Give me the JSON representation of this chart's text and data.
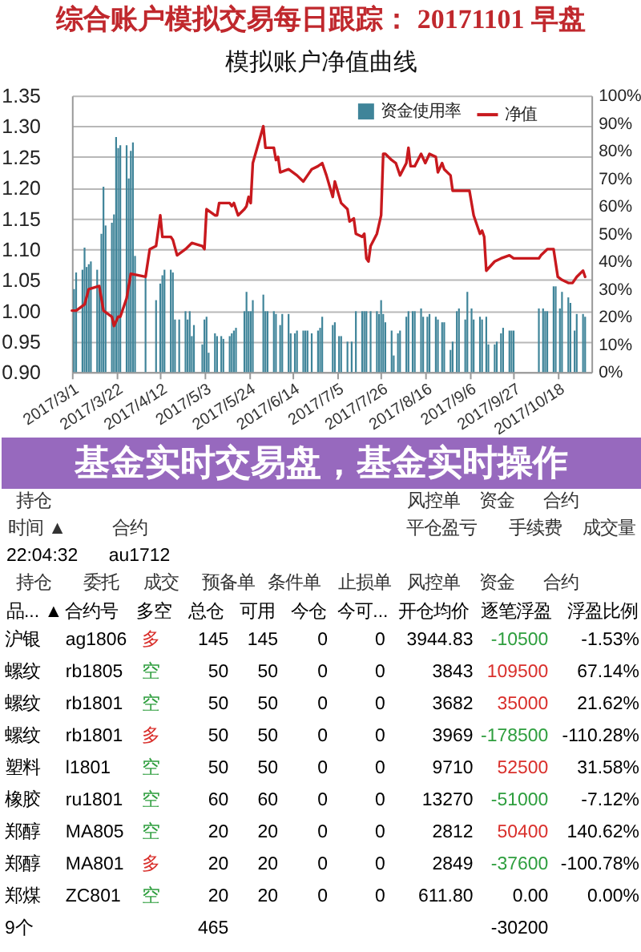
{
  "chart_data": [
    {
      "type": "bar",
      "title": "综合账户模拟交易每日跟踪： 20171101 早盘",
      "subtitle": "模拟账户净值曲线",
      "xlim": [
        "2017-03-01",
        "2017-11-03"
      ],
      "xticks": [
        {
          "value": "2017-03-01",
          "label": "2017/3/1"
        },
        {
          "value": "2017-03-22",
          "label": "2017/3/22"
        },
        {
          "value": "2017-04-12",
          "label": "2017/4/12"
        },
        {
          "value": "2017-05-03",
          "label": "2017/5/3"
        },
        {
          "value": "2017-05-24",
          "label": "2017/5/24"
        },
        {
          "value": "2017-06-14",
          "label": "2017/6/14"
        },
        {
          "value": "2017-07-05",
          "label": "2017/7/5"
        },
        {
          "value": "2017-07-26",
          "label": "2017/7/26"
        },
        {
          "value": "2017-08-16",
          "label": "2017/8/16"
        },
        {
          "value": "2017-09-06",
          "label": "2017/9/6"
        },
        {
          "value": "2017-09-27",
          "label": "2017/9/27"
        },
        {
          "value": "2017-10-18",
          "label": "2017/10/18"
        }
      ],
      "ylim": [
        0.9,
        1.35
      ],
      "yticks": [
        {
          "value": 0.9,
          "label": "0.90"
        },
        {
          "value": 0.95,
          "label": "0.95"
        },
        {
          "value": 1.0,
          "label": "1.00"
        },
        {
          "value": 1.05,
          "label": "1.05"
        },
        {
          "value": 1.1,
          "label": "1.10"
        },
        {
          "value": 1.15,
          "label": "1.15"
        },
        {
          "value": 1.2,
          "label": "1.20"
        },
        {
          "value": 1.25,
          "label": "1.25"
        },
        {
          "value": 1.3,
          "label": "1.30"
        },
        {
          "value": 1.35,
          "label": "1.35"
        }
      ],
      "y2lim": [
        0,
        100
      ],
      "y2ticks": [
        {
          "value": 0,
          "label": "0%"
        },
        {
          "value": 10,
          "label": "10%"
        },
        {
          "value": 20,
          "label": "20%"
        },
        {
          "value": 30,
          "label": "30%"
        },
        {
          "value": 40,
          "label": "40%"
        },
        {
          "value": 50,
          "label": "50%"
        },
        {
          "value": 60,
          "label": "60%"
        },
        {
          "value": 70,
          "label": "70%"
        },
        {
          "value": 80,
          "label": "80%"
        },
        {
          "value": 90,
          "label": "90%"
        },
        {
          "value": 100,
          "label": "100%"
        }
      ],
      "grid": "y",
      "legend": "top right",
      "series": [
        {
          "name": "资金使用率",
          "type": "bar",
          "axis": "y2",
          "color": "#3f8499",
          "x": [
            "2017-03-02",
            "2017-03-03",
            "2017-03-06",
            "2017-03-07",
            "2017-03-08",
            "2017-03-09",
            "2017-03-10",
            "2017-03-13",
            "2017-03-14",
            "2017-03-15",
            "2017-03-16",
            "2017-03-17",
            "2017-03-20",
            "2017-03-21",
            "2017-03-22",
            "2017-03-23",
            "2017-03-24",
            "2017-03-27",
            "2017-03-28",
            "2017-03-29",
            "2017-03-30",
            "2017-03-31",
            "2017-04-05",
            "2017-04-10",
            "2017-04-12",
            "2017-04-13",
            "2017-04-14",
            "2017-04-17",
            "2017-04-18",
            "2017-04-19",
            "2017-04-21",
            "2017-04-24",
            "2017-04-25",
            "2017-04-26",
            "2017-04-27",
            "2017-04-28",
            "2017-05-02",
            "2017-05-03",
            "2017-05-04",
            "2017-05-05",
            "2017-05-08",
            "2017-05-09",
            "2017-05-11",
            "2017-05-12",
            "2017-05-15",
            "2017-05-16",
            "2017-05-17",
            "2017-05-18",
            "2017-05-22",
            "2017-05-23",
            "2017-05-24",
            "2017-05-25",
            "2017-05-26",
            "2017-05-31",
            "2017-06-01",
            "2017-06-02",
            "2017-06-05",
            "2017-06-06",
            "2017-06-08",
            "2017-06-09",
            "2017-06-12",
            "2017-06-13",
            "2017-06-15",
            "2017-06-16",
            "2017-06-19",
            "2017-06-20",
            "2017-06-21",
            "2017-06-23",
            "2017-06-26",
            "2017-06-27",
            "2017-06-28",
            "2017-07-03",
            "2017-07-04",
            "2017-07-06",
            "2017-07-07",
            "2017-07-10",
            "2017-07-12",
            "2017-07-14",
            "2017-07-17",
            "2017-07-18",
            "2017-07-19",
            "2017-07-21",
            "2017-07-24",
            "2017-07-25",
            "2017-07-26",
            "2017-07-27",
            "2017-07-28",
            "2017-07-31",
            "2017-08-01",
            "2017-08-03",
            "2017-08-04",
            "2017-08-07",
            "2017-08-08",
            "2017-08-10",
            "2017-08-11",
            "2017-08-14",
            "2017-08-15",
            "2017-08-17",
            "2017-08-18",
            "2017-08-21",
            "2017-08-22",
            "2017-08-24",
            "2017-08-25",
            "2017-08-28",
            "2017-08-29",
            "2017-08-31",
            "2017-09-01",
            "2017-09-04",
            "2017-09-05",
            "2017-09-07",
            "2017-09-08",
            "2017-09-11",
            "2017-09-12",
            "2017-09-14",
            "2017-09-15",
            "2017-09-18",
            "2017-09-19",
            "2017-09-21",
            "2017-09-22",
            "2017-09-25",
            "2017-09-26",
            "2017-09-27",
            "2017-10-09",
            "2017-10-11",
            "2017-10-12",
            "2017-10-13",
            "2017-10-16",
            "2017-10-17",
            "2017-10-19",
            "2017-10-20",
            "2017-10-23",
            "2017-10-24",
            "2017-10-26",
            "2017-10-27",
            "2017-10-30",
            "2017-10-31"
          ],
          "values": [
            30,
            36,
            37,
            45,
            38,
            39,
            40,
            37,
            31,
            50,
            67,
            53,
            54,
            57,
            85,
            81,
            82,
            82,
            70,
            80,
            83,
            42,
            34,
            26,
            32,
            35,
            37,
            37,
            36,
            19,
            19,
            22,
            19,
            22,
            13,
            17,
            10,
            19,
            20,
            7,
            14,
            13,
            13,
            12,
            13,
            14,
            15,
            16,
            22,
            29,
            22,
            22,
            26,
            28,
            22,
            22,
            22,
            21,
            17,
            21,
            21,
            14,
            14,
            15,
            15,
            15,
            15,
            14,
            15,
            16,
            20,
            17,
            18,
            13,
            13,
            11,
            11,
            22,
            22,
            22,
            22,
            22,
            22,
            21,
            26,
            21,
            18,
            15,
            6,
            14,
            15,
            20,
            22,
            22,
            22,
            23,
            20,
            20,
            21,
            20,
            19,
            18,
            18,
            8,
            11,
            22,
            23,
            19,
            29,
            23,
            19,
            20,
            19,
            20,
            10,
            10,
            11,
            14,
            16,
            15,
            15,
            15,
            23,
            23,
            22,
            22,
            31,
            31,
            23,
            29,
            27,
            25,
            15,
            21,
            21,
            20
          ]
        },
        {
          "name": "净值",
          "type": "line",
          "color": "#c8191e",
          "x": [
            "2017-03-01",
            "2017-03-03",
            "2017-03-07",
            "2017-03-09",
            "2017-03-14",
            "2017-03-16",
            "2017-03-20",
            "2017-03-21",
            "2017-03-23",
            "2017-03-24",
            "2017-03-27",
            "2017-03-29",
            "2017-04-05",
            "2017-04-07",
            "2017-04-10",
            "2017-04-12",
            "2017-04-13",
            "2017-04-17",
            "2017-04-18",
            "2017-04-20",
            "2017-04-24",
            "2017-04-27",
            "2017-05-02",
            "2017-05-03",
            "2017-05-04",
            "2017-05-08",
            "2017-05-09",
            "2017-05-10",
            "2017-05-15",
            "2017-05-16",
            "2017-05-17",
            "2017-05-19",
            "2017-05-22",
            "2017-05-23",
            "2017-05-24",
            "2017-05-25",
            "2017-05-26",
            "2017-05-31",
            "2017-06-01",
            "2017-06-05",
            "2017-06-06",
            "2017-06-07",
            "2017-06-08",
            "2017-06-12",
            "2017-06-16",
            "2017-06-19",
            "2017-06-21",
            "2017-06-23",
            "2017-06-26",
            "2017-06-28",
            "2017-06-30",
            "2017-07-03",
            "2017-07-04",
            "2017-07-07",
            "2017-07-10",
            "2017-07-11",
            "2017-07-13",
            "2017-07-14",
            "2017-07-17",
            "2017-07-18",
            "2017-07-19",
            "2017-07-20",
            "2017-07-21",
            "2017-07-24",
            "2017-07-26",
            "2017-07-27",
            "2017-07-28",
            "2017-07-31",
            "2017-08-02",
            "2017-08-04",
            "2017-08-07",
            "2017-08-08",
            "2017-08-09",
            "2017-08-11",
            "2017-08-14",
            "2017-08-16",
            "2017-08-18",
            "2017-08-21",
            "2017-08-22",
            "2017-08-24",
            "2017-08-25",
            "2017-08-28",
            "2017-08-29",
            "2017-08-31",
            "2017-09-04",
            "2017-09-06",
            "2017-09-08",
            "2017-09-11",
            "2017-09-12",
            "2017-09-13",
            "2017-09-14",
            "2017-09-18",
            "2017-09-21",
            "2017-09-25",
            "2017-09-27",
            "2017-10-09",
            "2017-10-10",
            "2017-10-13",
            "2017-10-16",
            "2017-10-18",
            "2017-10-20",
            "2017-10-23",
            "2017-10-25",
            "2017-10-27",
            "2017-10-30",
            "2017-10-31"
          ],
          "values": [
            1.0,
            1.0,
            1.01,
            1.035,
            1.04,
            1.0,
            0.99,
            0.975,
            0.99,
            0.99,
            1.02,
            1.06,
            1.055,
            1.1,
            1.105,
            1.155,
            1.12,
            1.12,
            1.115,
            1.09,
            1.1,
            1.11,
            1.105,
            1.1,
            1.165,
            1.155,
            1.155,
            1.175,
            1.175,
            1.17,
            1.175,
            1.155,
            1.165,
            1.17,
            1.185,
            1.175,
            1.24,
            1.3,
            1.265,
            1.265,
            1.245,
            1.25,
            1.225,
            1.23,
            1.22,
            1.21,
            1.22,
            1.23,
            1.235,
            1.24,
            1.22,
            1.185,
            1.21,
            1.175,
            1.165,
            1.145,
            1.15,
            1.125,
            1.12,
            1.125,
            1.085,
            1.08,
            1.105,
            1.125,
            1.155,
            1.255,
            1.255,
            1.245,
            1.24,
            1.22,
            1.24,
            1.265,
            1.235,
            1.235,
            1.255,
            1.24,
            1.255,
            1.25,
            1.225,
            1.24,
            1.23,
            1.22,
            1.195,
            1.195,
            1.195,
            1.195,
            1.155,
            1.125,
            1.13,
            1.12,
            1.065,
            1.08,
            1.085,
            1.09,
            1.085,
            1.085,
            1.09,
            1.1,
            1.1,
            1.055,
            1.05,
            1.045,
            1.045,
            1.055,
            1.065,
            1.055
          ]
        }
      ]
    },
    {
      "type": "other",
      "title": "基金实时交易盘，基金实时操作",
      "annotations": [
        "持仓",
        "风控单",
        "资金",
        "合约",
        "时间 ▲",
        "合约",
        "平仓盈亏",
        "手续费",
        "成交量",
        "22:04:32",
        "au1712",
        "持仓",
        "委托",
        "成交",
        "预备单",
        "条件单",
        "止损单",
        "风控单",
        "资金",
        "合约",
        "品... ▲",
        "合约号",
        "多空",
        "总仓",
        "可用",
        "今仓",
        "今可...",
        "开仓均价",
        "逐笔浮盈",
        "浮盈比例",
        "沪银",
        "ag1806",
        "多",
        "145",
        "145",
        "0",
        "0",
        "3944.83",
        "-10500",
        "-1.53%",
        "螺纹",
        "rb1805",
        "空",
        "50",
        "50",
        "0",
        "0",
        "3843",
        "109500",
        "67.14%",
        "螺纹",
        "rb1801",
        "空",
        "50",
        "50",
        "0",
        "0",
        "3682",
        "35000",
        "21.62%",
        "螺纹",
        "rb1801",
        "多",
        "50",
        "50",
        "0",
        "0",
        "3969",
        "-178500",
        "-110.28%",
        "塑料",
        "l1801",
        "空",
        "50",
        "50",
        "0",
        "0",
        "9710",
        "52500",
        "31.58%",
        "橡胶",
        "ru1801",
        "空",
        "60",
        "60",
        "0",
        "0",
        "13270",
        "-51000",
        "-7.12%",
        "郑醇",
        "MA805",
        "空",
        "20",
        "20",
        "0",
        "0",
        "2812",
        "50400",
        "140.62%",
        "郑醇",
        "MA801",
        "多",
        "20",
        "20",
        "0",
        "0",
        "2849",
        "-37600",
        "-100.78%",
        "郑煤",
        "ZC801",
        "空",
        "20",
        "20",
        "0",
        "0",
        "611.80",
        "0.00",
        "0.00%",
        "9个",
        "465",
        "-30200"
      ],
      "colors": [
        "#333333",
        "#333333",
        "#333333",
        "#333333",
        "#333333",
        "#333333",
        "#333333",
        "#333333",
        "#333333",
        "#000000",
        "#000000",
        "#333333",
        "#333333",
        "#333333",
        "#333333",
        "#333333",
        "#333333",
        "#333333",
        "#333333",
        "#333333",
        "#000000",
        "#000000",
        "#000000",
        "#000000",
        "#000000",
        "#000000",
        "#000000",
        "#000000",
        "#000000",
        "#000000",
        "#000000",
        "#000000",
        "#d9302c",
        "#000000",
        "#000000",
        "#000000",
        "#000000",
        "#000000",
        "#2e9e3e",
        "#000000",
        "#000000",
        "#000000",
        "#2e9e3e",
        "#000000",
        "#000000",
        "#000000",
        "#000000",
        "#000000",
        "#d9302c",
        "#000000",
        "#000000",
        "#000000",
        "#2e9e3e",
        "#000000",
        "#000000",
        "#000000",
        "#000000",
        "#000000",
        "#d9302c",
        "#000000",
        "#000000",
        "#000000",
        "#d9302c",
        "#000000",
        "#000000",
        "#000000",
        "#000000",
        "#000000",
        "#2e9e3e",
        "#000000",
        "#000000",
        "#000000",
        "#2e9e3e",
        "#000000",
        "#000000",
        "#000000",
        "#000000",
        "#000000",
        "#d9302c",
        "#000000",
        "#000000",
        "#000000",
        "#2e9e3e",
        "#000000",
        "#000000",
        "#000000",
        "#000000",
        "#000000",
        "#2e9e3e",
        "#000000",
        "#000000",
        "#000000",
        "#2e9e3e",
        "#000000",
        "#000000",
        "#000000",
        "#000000",
        "#000000",
        "#d9302c",
        "#000000",
        "#000000",
        "#000000",
        "#d9302c",
        "#000000",
        "#000000",
        "#000000",
        "#000000",
        "#000000",
        "#2e9e3e",
        "#000000",
        "#000000",
        "#000000",
        "#2e9e3e",
        "#000000",
        "#000000",
        "#000000",
        "#000000",
        "#000000",
        "#000000",
        "#000000",
        "#000000",
        "#000000",
        "#000000"
      ]
    }
  ]
}
